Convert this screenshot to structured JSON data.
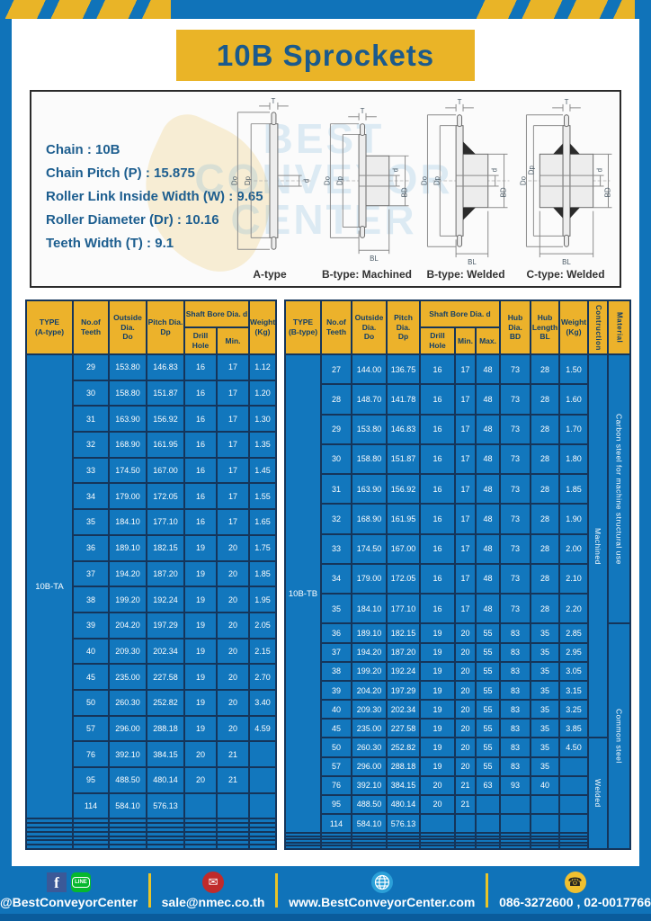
{
  "title": "10B Sprockets",
  "colors": {
    "frame_blue": "#1073b9",
    "gold": "#eab427",
    "table_cell_blue": "#1277bd",
    "grid_navy": "#15355a",
    "navy_text": "#1b5a8c"
  },
  "spec_box": {
    "lines": [
      "Chain : 10B",
      "Chain Pitch (P) : 15.875",
      "Roller Link Inside Width (W) : 9.65",
      "Roller Diameter (Dr) : 10.16",
      "Teeth Width (T) : 9.1"
    ],
    "watermark": "BEST CONVEYOR CENTER"
  },
  "dims": {
    "t": "T",
    "do": "Do",
    "dp": "Dp",
    "d": "d",
    "bd": "BD",
    "bl": "BL"
  },
  "diagrams": [
    {
      "label": "A-type"
    },
    {
      "label": "B-type: Machined"
    },
    {
      "label": "B-type: Welded"
    },
    {
      "label": "C-type: Welded"
    }
  ],
  "table_a": {
    "headers": {
      "type": "TYPE\n(A-type)",
      "teeth": "No.of\nTeeth",
      "outside": "Outside\nDia.\nDo",
      "pitch": "Pitch Dia.\nDp",
      "shaft": "Shaft Bore Dia. d",
      "drill": "Drill Hole",
      "min": "Min.",
      "weight": "Weight\n(Kg)"
    },
    "type": "10B-TA",
    "rows": [
      [
        "29",
        "153.80",
        "146.83",
        "16",
        "17",
        "1.12"
      ],
      [
        "30",
        "158.80",
        "151.87",
        "16",
        "17",
        "1.20"
      ],
      [
        "31",
        "163.90",
        "156.92",
        "16",
        "17",
        "1.30"
      ],
      [
        "32",
        "168.90",
        "161.95",
        "16",
        "17",
        "1.35"
      ],
      [
        "33",
        "174.50",
        "167.00",
        "16",
        "17",
        "1.45"
      ],
      [
        "34",
        "179.00",
        "172.05",
        "16",
        "17",
        "1.55"
      ],
      [
        "35",
        "184.10",
        "177.10",
        "16",
        "17",
        "1.65"
      ],
      [
        "36",
        "189.10",
        "182.15",
        "19",
        "20",
        "1.75"
      ],
      [
        "37",
        "194.20",
        "187.20",
        "19",
        "20",
        "1.85"
      ],
      [
        "38",
        "199.20",
        "192.24",
        "19",
        "20",
        "1.95"
      ],
      [
        "39",
        "204.20",
        "197.29",
        "19",
        "20",
        "2.05"
      ],
      [
        "40",
        "209.30",
        "202.34",
        "19",
        "20",
        "2.15"
      ],
      [
        "45",
        "235.00",
        "227.58",
        "19",
        "20",
        "2.70"
      ],
      [
        "50",
        "260.30",
        "252.82",
        "19",
        "20",
        "3.40"
      ],
      [
        "57",
        "296.00",
        "288.18",
        "19",
        "20",
        "4.59"
      ],
      [
        "76",
        "392.10",
        "384.15",
        "20",
        "21",
        ""
      ],
      [
        "95",
        "488.50",
        "480.14",
        "20",
        "21",
        ""
      ],
      [
        "114",
        "584.10",
        "576.13",
        "",
        "",
        ""
      ]
    ],
    "empty_rows": 7
  },
  "table_b": {
    "headers": {
      "type": "TYPE\n(B-type)",
      "teeth": "No.of\nTeeth",
      "outside": "Outside\nDia.\nDo",
      "pitch": "Pitch Dia.\nDp",
      "shaft": "Shaft Bore Dia. d",
      "drill": "Drill Hole",
      "min": "Min.",
      "max": "Max.",
      "hub_dia": "Hub Dia.\nBD",
      "hub_len": "Hub\nLength\nBL",
      "weight": "Weight\n(Kg)",
      "construction": "Contruction",
      "material": "Material"
    },
    "type": "10B-TB",
    "rows": [
      [
        "27",
        "144.00",
        "136.75",
        "16",
        "17",
        "48",
        "73",
        "28",
        "1.50"
      ],
      [
        "28",
        "148.70",
        "141.78",
        "16",
        "17",
        "48",
        "73",
        "28",
        "1.60"
      ],
      [
        "29",
        "153.80",
        "146.83",
        "16",
        "17",
        "48",
        "73",
        "28",
        "1.70"
      ],
      [
        "30",
        "158.80",
        "151.87",
        "16",
        "17",
        "48",
        "73",
        "28",
        "1.80"
      ],
      [
        "31",
        "163.90",
        "156.92",
        "16",
        "17",
        "48",
        "73",
        "28",
        "1.85"
      ],
      [
        "32",
        "168.90",
        "161.95",
        "16",
        "17",
        "48",
        "73",
        "28",
        "1.90"
      ],
      [
        "33",
        "174.50",
        "167.00",
        "16",
        "17",
        "48",
        "73",
        "28",
        "2.00"
      ],
      [
        "34",
        "179.00",
        "172.05",
        "16",
        "17",
        "48",
        "73",
        "28",
        "2.10"
      ],
      [
        "35",
        "184.10",
        "177.10",
        "16",
        "17",
        "48",
        "73",
        "28",
        "2.20"
      ],
      [
        "36",
        "189.10",
        "182.15",
        "19",
        "20",
        "55",
        "83",
        "35",
        "2.85"
      ],
      [
        "37",
        "194.20",
        "187.20",
        "19",
        "20",
        "55",
        "83",
        "35",
        "2.95"
      ],
      [
        "38",
        "199.20",
        "192.24",
        "19",
        "20",
        "55",
        "83",
        "35",
        "3.05"
      ],
      [
        "39",
        "204.20",
        "197.29",
        "19",
        "20",
        "55",
        "83",
        "35",
        "3.15"
      ],
      [
        "40",
        "209.30",
        "202.34",
        "19",
        "20",
        "55",
        "83",
        "35",
        "3.25"
      ],
      [
        "45",
        "235.00",
        "227.58",
        "19",
        "20",
        "55",
        "83",
        "35",
        "3.85"
      ],
      [
        "50",
        "260.30",
        "252.82",
        "19",
        "20",
        "55",
        "83",
        "35",
        "4.50"
      ],
      [
        "57",
        "296.00",
        "288.18",
        "19",
        "20",
        "55",
        "83",
        "35",
        ""
      ],
      [
        "76",
        "392.10",
        "384.15",
        "20",
        "21",
        "63",
        "93",
        "40",
        ""
      ],
      [
        "95",
        "488.50",
        "480.14",
        "20",
        "21",
        "",
        "",
        "",
        ""
      ],
      [
        "114",
        "584.10",
        "576.13",
        "",
        "",
        "",
        "",
        "",
        ""
      ]
    ],
    "construction": [
      {
        "label": "Machined",
        "span": 15
      },
      {
        "label": "Welded",
        "span": 10
      }
    ],
    "material": [
      {
        "label": "Carbon steel for machine structural use",
        "span": 9
      },
      {
        "label": "Common steel",
        "span": 16
      }
    ],
    "empty_rows": 5
  },
  "footer": {
    "items": [
      {
        "icons": [
          "facebook-icon",
          "line-icon"
        ],
        "label": "@BestConveyorCenter"
      },
      {
        "icons": [
          "mail-icon"
        ],
        "label": "sale@nmec.co.th"
      },
      {
        "icons": [
          "globe-icon"
        ],
        "label": "www.BestConveyorCenter.com"
      },
      {
        "icons": [
          "phone-icon"
        ],
        "label": "086-3272600 , 02-0017766"
      }
    ],
    "line_icon_text": "LINE",
    "fb_glyph": "f",
    "mail_glyph": "✉",
    "phone_glyph": "☎"
  }
}
